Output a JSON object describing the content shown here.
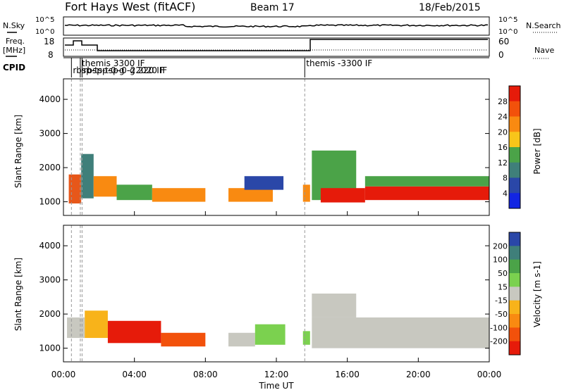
{
  "header": {
    "title": "Fort Hays West (fitACF)",
    "beam": "Beam 17",
    "date": "18/Feb/2015"
  },
  "noise_panel": {
    "left_label": "N.Sky",
    "left_ticks": [
      "10^5",
      "10^0"
    ],
    "right_label": "N.Search",
    "right_ticks": [
      "10^5",
      "10^0"
    ]
  },
  "freq_panel": {
    "left_label_1": "Freq.",
    "left_label_2": "[MHz]",
    "left_ticks": [
      "18",
      "8"
    ],
    "right_label": "Nave",
    "right_ticks": [
      "60",
      "0"
    ]
  },
  "cpid": {
    "label": "CPID",
    "markers": [
      {
        "text": "themis 3300 IF",
        "time": 0.95,
        "row": 0
      },
      {
        "text": "rbsp-tsp-0-g -22020 IF",
        "time": 0.45,
        "row": 1
      },
      {
        "text": "rbsp-tsp-0-g 220 IF",
        "time": 1.05,
        "row": 1
      },
      {
        "text": "themis -3300 IF",
        "time": 13.6,
        "row": 0
      }
    ]
  },
  "chart_data": [
    {
      "type": "heatmap",
      "panel": "power",
      "ylabel": "Slant Range [km]",
      "yticks": [
        1000,
        2000,
        3000,
        4000
      ],
      "ylim": [
        600,
        4600
      ],
      "xlim": [
        0,
        24
      ],
      "colorbar": {
        "label": "Power [dB]",
        "ticks": [
          "28",
          "24",
          "20",
          "16",
          "12",
          "8",
          "4"
        ],
        "colors": [
          "#e61b0a",
          "#f2510b",
          "#f98a11",
          "#f8c51a",
          "#4ba348",
          "#3f7f7a",
          "#2a47a8",
          "#1225e3"
        ]
      },
      "bands": [
        {
          "t": [
            0.3,
            1.0
          ],
          "r": [
            950,
            1800
          ],
          "color": "#e7571a"
        },
        {
          "t": [
            1.0,
            1.7
          ],
          "r": [
            1100,
            2400
          ],
          "color": "#3f7f7a"
        },
        {
          "t": [
            1.7,
            3.0
          ],
          "r": [
            1150,
            1750
          ],
          "color": "#f98a11"
        },
        {
          "t": [
            3.0,
            5.0
          ],
          "r": [
            1050,
            1500
          ],
          "color": "#4ba348"
        },
        {
          "t": [
            5.0,
            8.0
          ],
          "r": [
            1000,
            1400
          ],
          "color": "#f98a11"
        },
        {
          "t": [
            9.3,
            11.8
          ],
          "r": [
            1000,
            1400
          ],
          "color": "#f98a11"
        },
        {
          "t": [
            10.2,
            12.4
          ],
          "r": [
            1350,
            1750
          ],
          "color": "#2a47a8"
        },
        {
          "t": [
            13.5,
            13.9
          ],
          "r": [
            1000,
            1500
          ],
          "color": "#f98a11"
        },
        {
          "t": [
            14.0,
            16.5
          ],
          "r": [
            1050,
            2500
          ],
          "color": "#4ba348"
        },
        {
          "t": [
            14.5,
            17.0
          ],
          "r": [
            980,
            1400
          ],
          "color": "#e61b0a"
        },
        {
          "t": [
            17.0,
            24.0
          ],
          "r": [
            1050,
            1450
          ],
          "color": "#e61b0a"
        },
        {
          "t": [
            17.0,
            24.0
          ],
          "r": [
            1450,
            1750
          ],
          "color": "#4ba348"
        }
      ]
    },
    {
      "type": "heatmap",
      "panel": "velocity",
      "ylabel": "Slant Range [km]",
      "yticks": [
        1000,
        2000,
        3000,
        4000
      ],
      "ylim": [
        600,
        4600
      ],
      "xlim": [
        0,
        24
      ],
      "colorbar": {
        "label": "Velocity [m s-1]",
        "ticks": [
          "200",
          "100",
          "50",
          "15",
          "-15",
          "-50",
          "-100",
          "-200"
        ],
        "colors": [
          "#2a47a8",
          "#3f7f7a",
          "#4ba348",
          "#7bd14f",
          "#c8c8c0",
          "#f8b31a",
          "#f98a11",
          "#f2510b",
          "#e61b0a"
        ]
      },
      "bands": [
        {
          "t": [
            0.2,
            1.2
          ],
          "r": [
            1300,
            1900
          ],
          "color": "#c8c8c0"
        },
        {
          "t": [
            1.2,
            2.5
          ],
          "r": [
            1300,
            2100
          ],
          "color": "#f8b31a"
        },
        {
          "t": [
            2.5,
            5.5
          ],
          "r": [
            1150,
            1800
          ],
          "color": "#e61b0a"
        },
        {
          "t": [
            5.5,
            8.0
          ],
          "r": [
            1050,
            1450
          ],
          "color": "#f2510b"
        },
        {
          "t": [
            9.3,
            10.8
          ],
          "r": [
            1050,
            1450
          ],
          "color": "#c8c8c0"
        },
        {
          "t": [
            10.8,
            12.5
          ],
          "r": [
            1100,
            1700
          ],
          "color": "#7bd14f"
        },
        {
          "t": [
            13.5,
            13.9
          ],
          "r": [
            1100,
            1500
          ],
          "color": "#7bd14f"
        },
        {
          "t": [
            14.0,
            24.0
          ],
          "r": [
            1000,
            1900
          ],
          "color": "#c8c8c0"
        },
        {
          "t": [
            14.0,
            16.5
          ],
          "r": [
            1900,
            2600
          ],
          "color": "#c8c8c0"
        }
      ]
    }
  ],
  "time_axis": {
    "label": "Time UT",
    "ticks": [
      "00:00",
      "04:00",
      "08:00",
      "12:00",
      "16:00",
      "20:00",
      "00:00"
    ]
  }
}
